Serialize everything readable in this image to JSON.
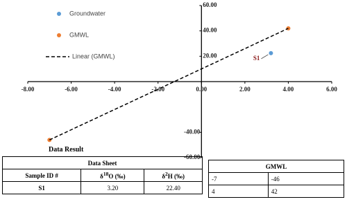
{
  "chart_data": {
    "type": "scatter",
    "xlim": [
      -8,
      6
    ],
    "ylim": [
      -60,
      60
    ],
    "xticks": [
      {
        "value": -8,
        "label": "-8.00"
      },
      {
        "value": -6,
        "label": "-6.00"
      },
      {
        "value": -4,
        "label": "-4.00"
      },
      {
        "value": -2,
        "label": "-2.00"
      },
      {
        "value": 0,
        "label": "0.00"
      },
      {
        "value": 2,
        "label": "2.00"
      },
      {
        "value": 4,
        "label": "4.00"
      },
      {
        "value": 6,
        "label": "6.00"
      }
    ],
    "yticks": [
      {
        "value": 60,
        "label": "60.00"
      },
      {
        "value": 40,
        "label": "40.00"
      },
      {
        "value": 20,
        "label": "20.00"
      },
      {
        "value": -40,
        "label": "-40.00"
      },
      {
        "value": -60,
        "label": "-60.00"
      }
    ],
    "series": [
      {
        "name": "Groundwater",
        "color": "#5b9bd5",
        "x": [
          3.2
        ],
        "values": [
          22.4
        ],
        "labels": [
          "S1"
        ]
      },
      {
        "name": "GMWL",
        "color": "#ed7d31",
        "x": [
          -7,
          4
        ],
        "values": [
          -46,
          42
        ]
      },
      {
        "name": "Linear (GMWL)",
        "type": "line",
        "color": "#000000",
        "dashed": true,
        "x": [
          -7,
          4
        ],
        "values": [
          -46,
          42
        ]
      }
    ]
  },
  "data_result": {
    "title": "Data Result",
    "table_title": "Data Sheet",
    "columns": [
      {
        "text": "Sample ID #"
      },
      {
        "symbol": "δ",
        "sup": "18",
        "rest": "O (‰)"
      },
      {
        "symbol": "δ",
        "sup": "2",
        "rest": "H (‰)"
      }
    ],
    "rows": [
      [
        "S1",
        "3.20",
        "22.40"
      ]
    ]
  },
  "gmwl_table": {
    "title": "GMWL",
    "rows": [
      [
        "-7",
        "-46"
      ],
      [
        "4",
        "42"
      ]
    ]
  }
}
